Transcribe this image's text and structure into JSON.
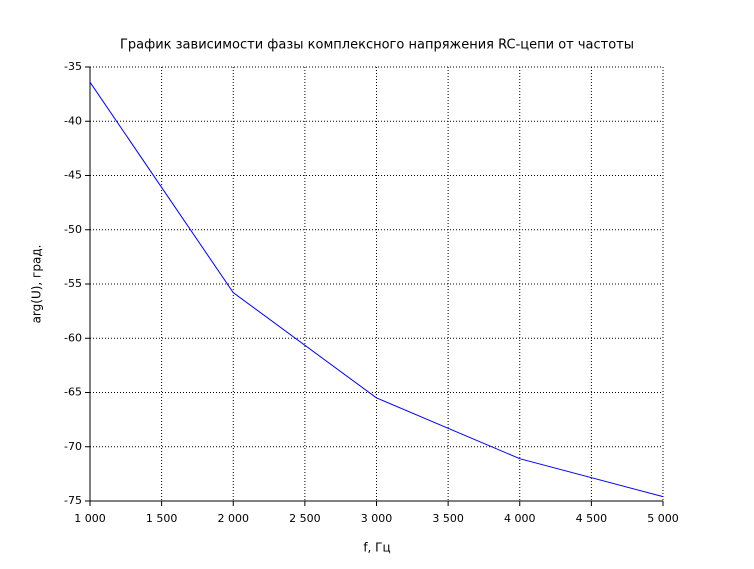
{
  "chart_data": {
    "type": "line",
    "title": "График зависимости фазы комплексного напряжения RC-цепи от частоты",
    "x_label": "f, Гц",
    "y_label": "arg(U), град.",
    "x": [
      1000,
      2000,
      3000,
      4000,
      5000
    ],
    "series": [
      {
        "color": "#0000ff",
        "values": [
          -36.4,
          -55.8,
          -65.5,
          -71.1,
          -74.6
        ]
      }
    ],
    "xlim": [
      1000,
      5000
    ],
    "ylim": [
      -75,
      -35
    ],
    "xticks": [
      {
        "value": 1000,
        "label": "1 000"
      },
      {
        "value": 1500,
        "label": "1 500"
      },
      {
        "value": 2000,
        "label": "2 000"
      },
      {
        "value": 2500,
        "label": "2 500"
      },
      {
        "value": 3000,
        "label": "3 000"
      },
      {
        "value": 3500,
        "label": "3 500"
      },
      {
        "value": 4000,
        "label": "4 000"
      },
      {
        "value": 4500,
        "label": "4 500"
      },
      {
        "value": 5000,
        "label": "5 000"
      }
    ],
    "yticks": [
      -35,
      -40,
      -45,
      -50,
      -55,
      -60,
      -65,
      -70,
      -75
    ],
    "grid": true
  }
}
